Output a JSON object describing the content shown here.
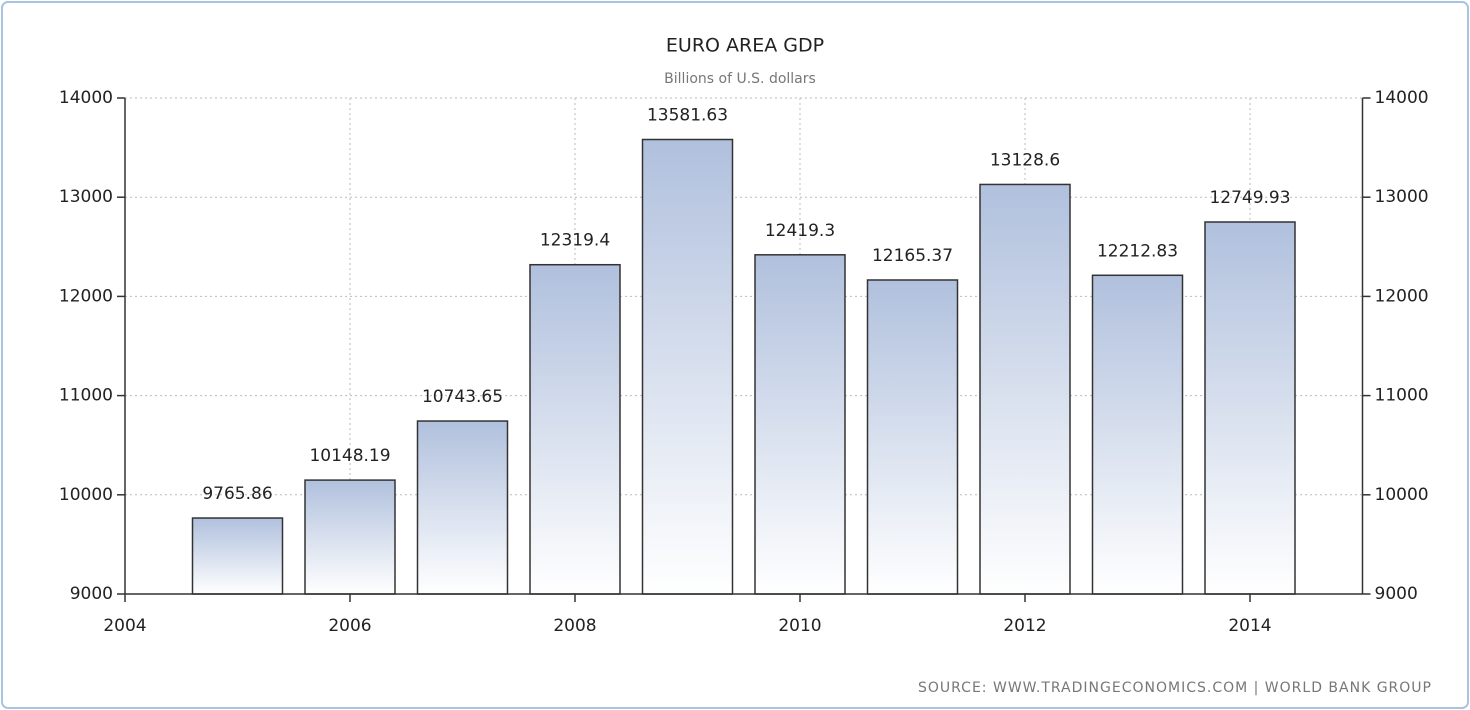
{
  "chart_data": {
    "type": "bar",
    "title": "EURO AREA GDP",
    "subtitle": "Billions of U.S. dollars",
    "x": [
      2005,
      2006,
      2007,
      2008,
      2009,
      2010,
      2011,
      2012,
      2013,
      2014
    ],
    "values": [
      9765.86,
      10148.19,
      10743.65,
      12319.4,
      13581.63,
      12419.3,
      12165.37,
      13128.6,
      12212.83,
      12749.93
    ],
    "color": "#b0c0dd",
    "xlim": [
      2004,
      2015
    ],
    "xticks": [
      2004,
      2006,
      2008,
      2010,
      2012,
      2014
    ],
    "ylim": [
      9000,
      14000
    ],
    "yticks": [
      9000,
      10000,
      11000,
      12000,
      13000,
      14000
    ],
    "y2lim": [
      9000,
      14000
    ],
    "y2ticks": [
      9000,
      10000,
      11000,
      12000,
      13000,
      14000
    ],
    "grid": true,
    "source": "SOURCE: WWW.TRADINGECONOMICS.COM | WORLD BANK GROUP"
  }
}
